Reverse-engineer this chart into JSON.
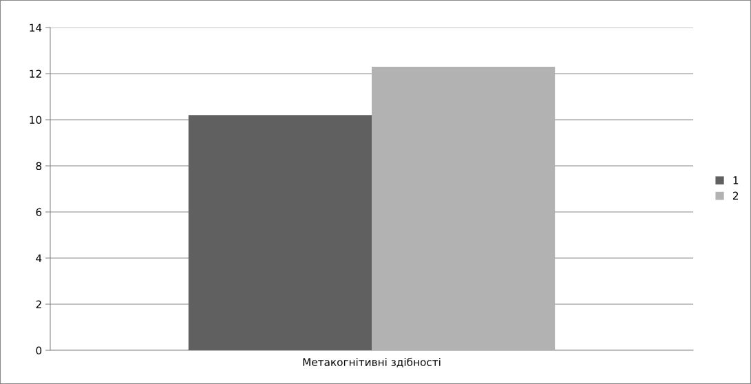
{
  "chart_data": {
    "type": "bar",
    "categories": [
      "Метакогнітивні здібності"
    ],
    "series": [
      {
        "name": "1",
        "color": "#606060",
        "values": [
          10.2
        ]
      },
      {
        "name": "2",
        "color": "#b2b2b2",
        "values": [
          12.3
        ]
      }
    ],
    "ylim": [
      0,
      14
    ],
    "yticks": [
      0,
      2,
      4,
      6,
      8,
      10,
      12,
      14
    ],
    "grid": "y",
    "legend": "right"
  }
}
